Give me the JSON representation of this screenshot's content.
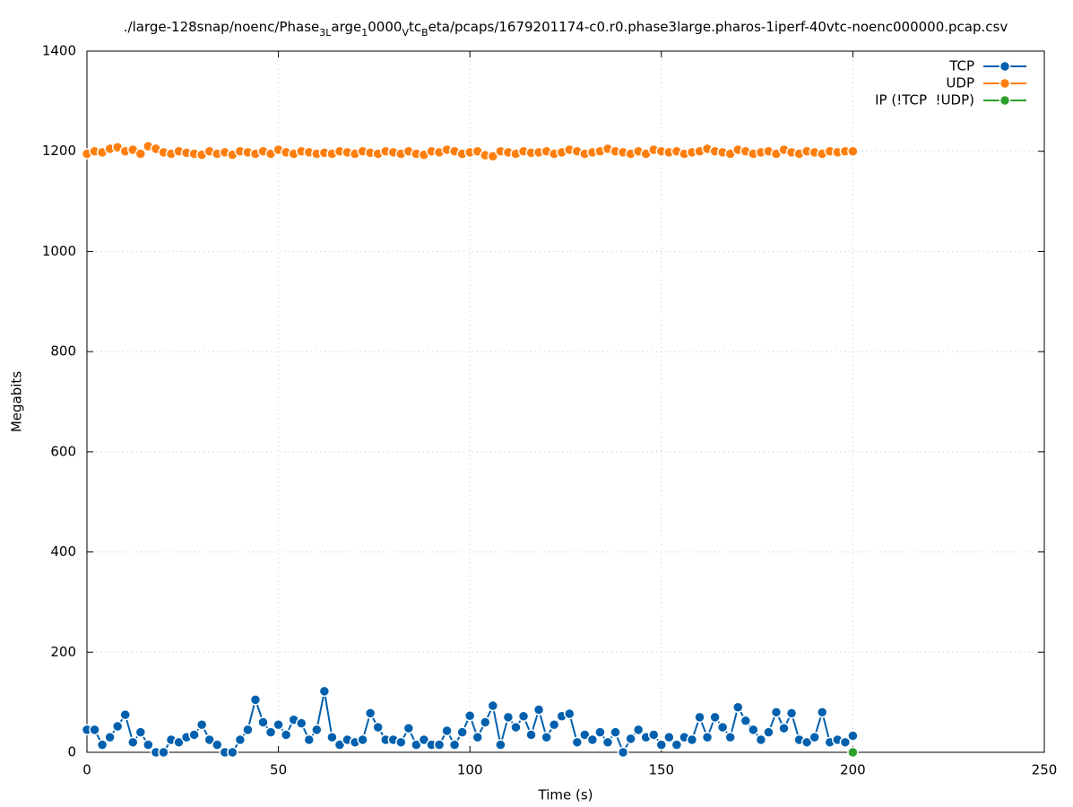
{
  "chart_data": {
    "type": "linespoints",
    "title_parts": [
      {
        "text": "./large-128snap/noenc/Phase",
        "sub": false
      },
      {
        "text": "3L",
        "sub": true
      },
      {
        "text": "arge",
        "sub": false
      },
      {
        "text": "1",
        "sub": true
      },
      {
        "text": "0000",
        "sub": false
      },
      {
        "text": "V",
        "sub": true
      },
      {
        "text": "tc",
        "sub": false
      },
      {
        "text": "B",
        "sub": true
      },
      {
        "text": "eta/pcaps/1679201174-c0.r0.phase3large.pharos-1iperf-40vtc-noenc000000.pcap.csv",
        "sub": false
      }
    ],
    "x_label": "Time (s)",
    "y_label": "Megabits",
    "xlim": [
      0,
      250
    ],
    "ylim": [
      0,
      1400
    ],
    "xticks": [
      0,
      50,
      100,
      150,
      200,
      250
    ],
    "yticks": [
      0,
      200,
      400,
      600,
      800,
      1000,
      1200,
      1400
    ],
    "grid": true,
    "legend": "top-right",
    "x": [
      0,
      2,
      4,
      6,
      8,
      10,
      12,
      14,
      16,
      18,
      20,
      22,
      24,
      26,
      28,
      30,
      32,
      34,
      36,
      38,
      40,
      42,
      44,
      46,
      48,
      50,
      52,
      54,
      56,
      58,
      60,
      62,
      64,
      66,
      68,
      70,
      72,
      74,
      76,
      78,
      80,
      82,
      84,
      86,
      88,
      90,
      92,
      94,
      96,
      98,
      100,
      102,
      104,
      106,
      108,
      110,
      112,
      114,
      116,
      118,
      120,
      122,
      124,
      126,
      128,
      130,
      132,
      134,
      136,
      138,
      140,
      142,
      144,
      146,
      148,
      150,
      152,
      154,
      156,
      158,
      160,
      162,
      164,
      166,
      168,
      170,
      172,
      174,
      176,
      178,
      180,
      182,
      184,
      186,
      188,
      190,
      192,
      194,
      196,
      198,
      200
    ],
    "series": [
      {
        "name": "TCP",
        "color": "#0060ad",
        "values": [
          45,
          45,
          15,
          30,
          52,
          75,
          20,
          40,
          15,
          0,
          0,
          25,
          20,
          30,
          35,
          55,
          25,
          15,
          0,
          0,
          25,
          45,
          105,
          60,
          40,
          55,
          35,
          65,
          58,
          25,
          45,
          122,
          30,
          15,
          25,
          20,
          25,
          78,
          50,
          25,
          25,
          20,
          48,
          15,
          25,
          15,
          15,
          43,
          15,
          40,
          73,
          30,
          60,
          93,
          15,
          70,
          50,
          72,
          35,
          85,
          30,
          55,
          72,
          77,
          20,
          35,
          25,
          40,
          20,
          40,
          0,
          27,
          45,
          30,
          35,
          15,
          30,
          15,
          30,
          25,
          70,
          30,
          70,
          50,
          30,
          90,
          63,
          45,
          25,
          40,
          80,
          48,
          78,
          25,
          20,
          30,
          80,
          20,
          25,
          20,
          33
        ]
      },
      {
        "name": "UDP",
        "color": "#ff7f0e",
        "values": [
          1195,
          1200,
          1198,
          1205,
          1208,
          1200,
          1203,
          1195,
          1210,
          1205,
          1198,
          1195,
          1200,
          1197,
          1195,
          1193,
          1200,
          1195,
          1198,
          1193,
          1200,
          1198,
          1195,
          1200,
          1195,
          1203,
          1198,
          1195,
          1200,
          1198,
          1195,
          1197,
          1195,
          1200,
          1198,
          1195,
          1200,
          1197,
          1195,
          1200,
          1198,
          1195,
          1200,
          1195,
          1193,
          1200,
          1198,
          1203,
          1200,
          1195,
          1198,
          1200,
          1192,
          1190,
          1200,
          1198,
          1195,
          1200,
          1197,
          1198,
          1200,
          1195,
          1198,
          1203,
          1200,
          1195,
          1198,
          1200,
          1205,
          1200,
          1198,
          1195,
          1200,
          1195,
          1203,
          1200,
          1198,
          1200,
          1195,
          1198,
          1200,
          1205,
          1200,
          1198,
          1195,
          1203,
          1200,
          1195,
          1198,
          1200,
          1195,
          1203,
          1198,
          1195,
          1200,
          1198,
          1195,
          1200,
          1198,
          1200,
          1200
        ]
      },
      {
        "name": "IP (!TCP  !UDP)",
        "color": "#2ca02c",
        "x": [
          200
        ],
        "values": [
          0
        ]
      }
    ]
  }
}
